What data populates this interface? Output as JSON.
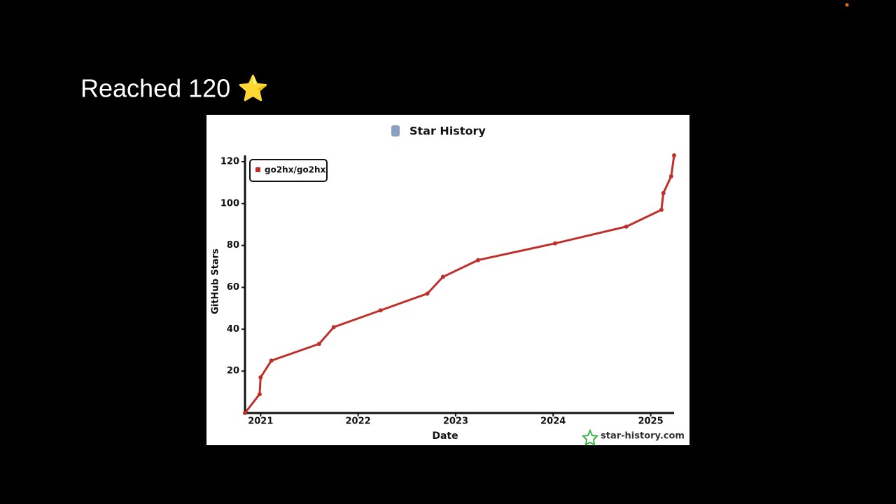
{
  "slide_title": "Reached 120 ⭐",
  "chart_data": {
    "type": "line",
    "title": "Star History",
    "x_label": "Date",
    "y_label": "GitHub Stars",
    "watermark": "star-history.com",
    "xlim": [
      2020.84,
      2025.24
    ],
    "xticks": [
      2021,
      2022,
      2023,
      2024,
      2025
    ],
    "ylim": [
      0,
      123
    ],
    "yticks": [
      20,
      40,
      60,
      80,
      100,
      120
    ],
    "legend": "top-left",
    "series": [
      {
        "name": "go2hx/go2hx",
        "color": "#c0302a",
        "x": [
          2020.84,
          2020.99,
          2021.0,
          2021.11,
          2021.6,
          2021.75,
          2022.23,
          2022.71,
          2022.87,
          2023.23,
          2024.02,
          2024.75,
          2025.11,
          2025.13,
          2025.21,
          2025.24
        ],
        "values": [
          0,
          9,
          17,
          25,
          33,
          41,
          49,
          57,
          65,
          73,
          81,
          89,
          97,
          105,
          113,
          123
        ]
      }
    ]
  }
}
